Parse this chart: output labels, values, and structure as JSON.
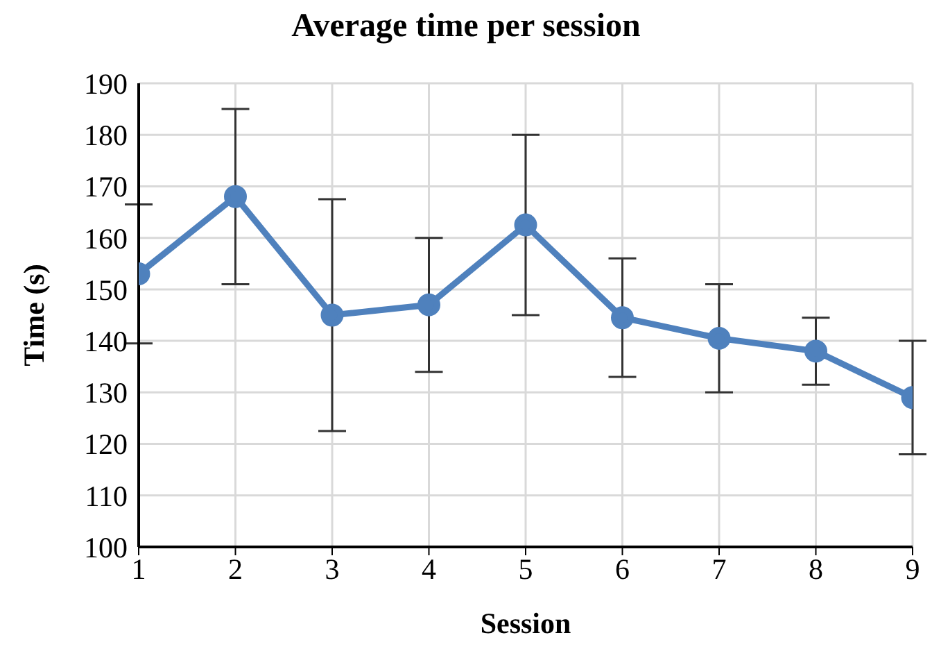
{
  "chart_data": {
    "type": "line",
    "title": "Average time per session",
    "xlabel": "Session",
    "ylabel": "Time (s)",
    "x": [
      1,
      2,
      3,
      4,
      5,
      6,
      7,
      8,
      9
    ],
    "series": [
      {
        "color": "#4f81bd",
        "values": [
          153,
          168,
          145,
          147,
          162.5,
          144.5,
          140.5,
          138,
          129
        ],
        "errors": [
          13.5,
          17,
          22.5,
          13,
          17.5,
          11.5,
          10.5,
          6.5,
          11
        ]
      }
    ],
    "xlim": [
      1,
      9
    ],
    "xticks": [
      1,
      2,
      3,
      4,
      5,
      6,
      7,
      8,
      9
    ],
    "ylim": [
      100,
      190
    ],
    "yticks": [
      100,
      110,
      120,
      130,
      140,
      150,
      160,
      170,
      180,
      190
    ],
    "grid": true,
    "marker": "circle",
    "line_style": "solid",
    "legend": false
  }
}
